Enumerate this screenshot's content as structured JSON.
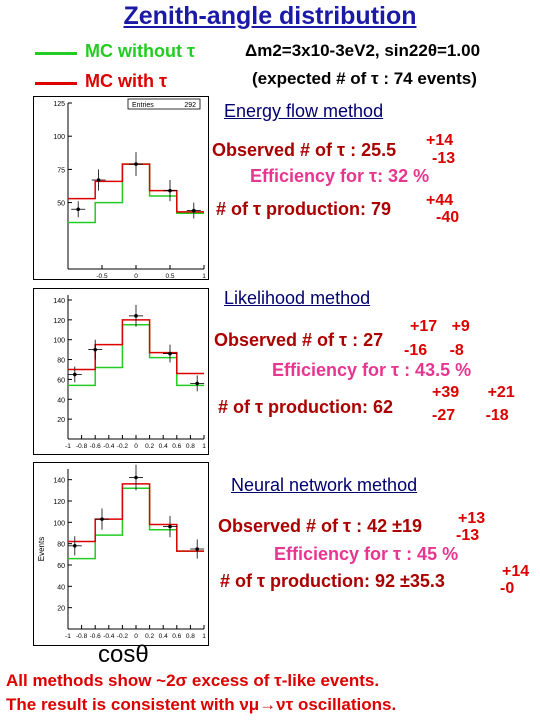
{
  "header": {
    "title": "Zenith-angle distribution",
    "legend_mc_without": "MC without τ",
    "legend_mc_with": "MC with τ",
    "oscillation_params": "Δm2=3x10-3eV2, sin22θ=1.00",
    "expected": "(expected # of τ : 74 events)"
  },
  "methods": [
    {
      "name": "Energy flow method",
      "observed_label": "Observed # of τ : 25.5",
      "observed_plus": "+14",
      "observed_minus": "-13",
      "efficiency": "Efficiency for τ: 32 %",
      "production_label": "# of τ production: 79",
      "production_plus": "+44",
      "production_minus": "-40"
    },
    {
      "name": "Likelihood method",
      "observed_label": "Observed # of τ : 27",
      "observed_plus": "+17 +9",
      "observed_minus": "-16 -8",
      "efficiency": "Efficiency for τ : 43.5 %",
      "production_label": "# of τ production: 62",
      "production_plus": "+39 +21",
      "production_minus": "-27 -18"
    },
    {
      "name": "Neural network method",
      "observed_label": "Observed # of τ : 42 ±19",
      "observed_plus": "+13",
      "observed_minus": "-13",
      "efficiency": "Efficiency for τ : 45 %",
      "production_label": "# of τ production: 92 ±35.3",
      "production_plus": "+14",
      "production_minus": "-0"
    }
  ],
  "footer": {
    "cos_label": "cosθ",
    "line1": "All methods show ~2σ excess of τ-like events.",
    "line2": "The result is consistent with νμ→ντ oscillations."
  },
  "colors": {
    "mc_without": "#22cc22",
    "mc_with": "#dd0000",
    "title": "#1a1aa6"
  },
  "chart_data": [
    {
      "type": "bar",
      "xlabel": "",
      "ylabel": "",
      "xlim": [
        -1,
        1
      ],
      "ylim": [
        0,
        125
      ],
      "yticks": [
        50,
        75,
        100,
        125
      ],
      "xticks": [
        -0.5,
        0,
        0.5,
        1
      ],
      "stats_box": {
        "label": "Entries",
        "value": "292"
      },
      "bin_edges": [
        -1,
        -0.8,
        -0.6,
        -0.4,
        -0.2,
        0,
        0.2,
        0.4,
        0.6,
        0.8,
        1
      ],
      "series": [
        {
          "name": "MC without τ",
          "values": [
            35,
            35,
            50,
            50,
            79,
            79,
            55,
            55,
            42,
            42
          ]
        },
        {
          "name": "MC with τ",
          "values": [
            53,
            53,
            66,
            66,
            79,
            79,
            59,
            59,
            43,
            43
          ]
        }
      ],
      "data_points": {
        "x": [
          -0.85,
          -0.55,
          0,
          0.5,
          0.85
        ],
        "y": [
          45,
          67,
          79,
          59,
          44
        ],
        "yerr": [
          6,
          8,
          9,
          8,
          6
        ]
      }
    },
    {
      "type": "bar",
      "xlabel": "",
      "ylabel": "",
      "xlim": [
        -1,
        1
      ],
      "ylim": [
        0,
        145
      ],
      "yticks": [
        20,
        40,
        60,
        80,
        100,
        120,
        140
      ],
      "xticks": [
        -1,
        -0.8,
        -0.6,
        -0.4,
        -0.2,
        0,
        0.2,
        0.4,
        0.6,
        0.8,
        1
      ],
      "bin_edges": [
        -1,
        -0.8,
        -0.6,
        -0.4,
        -0.2,
        0,
        0.2,
        0.4,
        0.6,
        0.8,
        1
      ],
      "series": [
        {
          "name": "MC without τ",
          "values": [
            54,
            54,
            72,
            72,
            115,
            115,
            82,
            82,
            54,
            54
          ]
        },
        {
          "name": "MC with τ",
          "values": [
            70,
            70,
            95,
            95,
            120,
            120,
            87,
            87,
            66,
            66
          ]
        }
      ],
      "data_points": {
        "x": [
          -0.9,
          -0.6,
          0,
          0.5,
          0.9
        ],
        "y": [
          65,
          90,
          124,
          86,
          56
        ],
        "yerr": [
          8,
          10,
          11,
          9,
          8
        ]
      }
    },
    {
      "type": "bar",
      "xlabel": "",
      "ylabel": "Events",
      "xlim": [
        -1,
        1
      ],
      "ylim": [
        0,
        150
      ],
      "yticks": [
        20,
        40,
        60,
        80,
        100,
        120,
        140
      ],
      "xticks": [
        -1,
        -0.8,
        -0.6,
        -0.4,
        -0.2,
        0,
        0.2,
        0.4,
        0.6,
        0.8,
        1
      ],
      "bin_edges": [
        -1,
        -0.8,
        -0.6,
        -0.4,
        -0.2,
        0,
        0.2,
        0.4,
        0.6,
        0.8,
        1
      ],
      "series": [
        {
          "name": "MC without τ",
          "values": [
            66,
            66,
            88,
            88,
            132,
            132,
            93,
            93,
            73,
            73
          ]
        },
        {
          "name": "MC with τ",
          "values": [
            82,
            82,
            103,
            103,
            136,
            136,
            98,
            98,
            73,
            73
          ]
        }
      ],
      "data_points": {
        "x": [
          -0.9,
          -0.5,
          0,
          0.5,
          0.9
        ],
        "y": [
          78,
          103,
          142,
          96,
          75
        ],
        "yerr": [
          9,
          10,
          12,
          10,
          9
        ]
      }
    }
  ]
}
